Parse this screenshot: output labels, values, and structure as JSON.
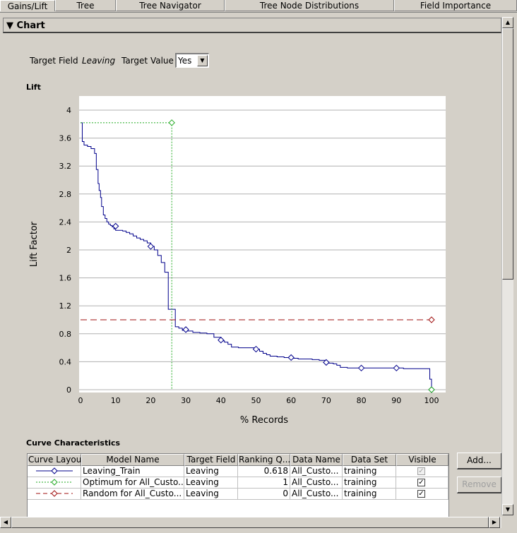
{
  "tabs": [
    "Gains/Lift",
    "Tree",
    "Tree Navigator",
    "Tree Node Distributions",
    "Field Importance"
  ],
  "section": {
    "title": "Chart",
    "toggle": "▼"
  },
  "target": {
    "field_label": "Target Field",
    "field_value": "Leaving",
    "value_label": "Target Value",
    "value_selected": "Yes"
  },
  "chart_title": "Lift",
  "chart_data": {
    "type": "line",
    "xlabel": "% Records",
    "ylabel": "Lift Factor",
    "xlim": [
      0,
      100
    ],
    "ylim": [
      0,
      4
    ],
    "x_ticks": [
      "0",
      "10",
      "20",
      "30",
      "40",
      "50",
      "60",
      "70",
      "80",
      "90",
      "100"
    ],
    "y_ticks": [
      "0",
      "0.4",
      "0.8",
      "1.2",
      "1.6",
      "2",
      "2.4",
      "2.8",
      "3.2",
      "3.6",
      "4"
    ],
    "grid": "horizontal",
    "series": [
      {
        "name": "Leaving_Train",
        "color": "#00008b",
        "style": "solid",
        "x": [
          0,
          0.5,
          1,
          2,
          3,
          4,
          4.5,
          5,
          5.3,
          5.7,
          6,
          6.5,
          7,
          7.5,
          8,
          8.5,
          9,
          9.5,
          10,
          11,
          12,
          13,
          14,
          15,
          16,
          17,
          18,
          19,
          20,
          21,
          22,
          23,
          24,
          25,
          25.5,
          26,
          26.5,
          27,
          28,
          29,
          30,
          32,
          34,
          36,
          38,
          40,
          41,
          42,
          43,
          44,
          45,
          46,
          48,
          50,
          51,
          52,
          53,
          54,
          56,
          58,
          60,
          62,
          64,
          66,
          68,
          70,
          72,
          73,
          74,
          76,
          78,
          80,
          82,
          84,
          86,
          88,
          90,
          92,
          94,
          96,
          98,
          99,
          99.5,
          100
        ],
        "y": [
          3.82,
          3.55,
          3.5,
          3.48,
          3.45,
          3.38,
          3.15,
          2.95,
          2.85,
          2.75,
          2.62,
          2.5,
          2.45,
          2.4,
          2.37,
          2.35,
          2.33,
          2.3,
          2.28,
          2.28,
          2.27,
          2.25,
          2.23,
          2.2,
          2.17,
          2.15,
          2.13,
          2.1,
          2.05,
          2.0,
          1.92,
          1.82,
          1.68,
          1.15,
          1.15,
          1.15,
          1.15,
          0.9,
          0.88,
          0.85,
          0.84,
          0.82,
          0.81,
          0.8,
          0.75,
          0.7,
          0.68,
          0.65,
          0.61,
          0.61,
          0.6,
          0.6,
          0.6,
          0.58,
          0.55,
          0.52,
          0.5,
          0.48,
          0.47,
          0.46,
          0.45,
          0.44,
          0.44,
          0.43,
          0.42,
          0.38,
          0.37,
          0.35,
          0.32,
          0.31,
          0.31,
          0.31,
          0.31,
          0.31,
          0.31,
          0.31,
          0.31,
          0.3,
          0.3,
          0.3,
          0.3,
          0.3,
          0.15,
          0.0
        ],
        "markers": [
          [
            10,
            2.34
          ],
          [
            20,
            2.05
          ],
          [
            30,
            0.86
          ],
          [
            40,
            0.71
          ],
          [
            50,
            0.58
          ],
          [
            60,
            0.46
          ],
          [
            70,
            0.39
          ],
          [
            80,
            0.31
          ],
          [
            90,
            0.31
          ],
          [
            100,
            0.0
          ]
        ]
      },
      {
        "name": "Optimum for All_Customers",
        "color": "#22aa22",
        "style": "dotted",
        "x": [
          0,
          26,
          26
        ],
        "y": [
          3.82,
          3.82,
          0
        ],
        "markers": [
          [
            26,
            3.82
          ],
          [
            100,
            0
          ]
        ]
      },
      {
        "name": "Random for All_Customers",
        "color": "#a01010",
        "style": "dashed",
        "x": [
          0,
          100
        ],
        "y": [
          1,
          1
        ],
        "markers": [
          [
            100,
            1
          ]
        ]
      }
    ]
  },
  "curves": {
    "title": "Curve Characteristics",
    "headers": [
      "Curve Layout",
      "Model Name",
      "Target Field",
      "Ranking Q...",
      "Data Name",
      "Data Set",
      "Visible"
    ],
    "rows": [
      {
        "model": "Leaving_Train",
        "target": "Leaving",
        "rank": "0.618",
        "data_name": "All_Custo...",
        "data_set": "training",
        "visible": "✓",
        "color": "#00008b",
        "dash": ""
      },
      {
        "model": "Optimum for  All_Custo...",
        "target": "Leaving",
        "rank": "1",
        "data_name": "All_Custo...",
        "data_set": "training",
        "visible": "✓",
        "color": "#22aa22",
        "dash": "2,2"
      },
      {
        "model": "Random for  All_Custo...",
        "target": "Leaving",
        "rank": "0",
        "data_name": "All_Custo...",
        "data_set": "training",
        "visible": "✓",
        "color": "#a01010",
        "dash": "6,4"
      }
    ],
    "add_button": "Add...",
    "remove_button": "Remove"
  }
}
